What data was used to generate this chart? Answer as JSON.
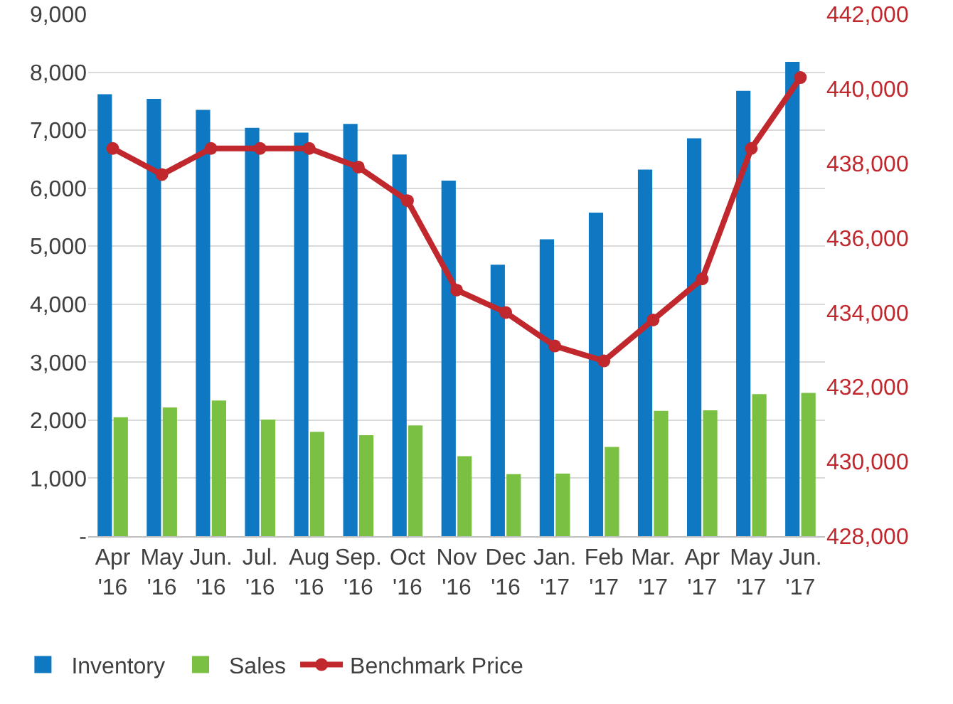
{
  "chart_data": {
    "type": "bar",
    "categories": [
      "Apr\n'16",
      "May\n'16",
      "Jun.\n'16",
      "Jul.\n'16",
      "Aug\n'16",
      "Sep.\n'16",
      "Oct\n'16",
      "Nov\n'16",
      "Dec\n'16",
      "Jan.\n'17",
      "Feb\n'17",
      "Mar.\n'17",
      "Apr\n'17",
      "May\n'17",
      "Jun.\n'17"
    ],
    "series": [
      {
        "name": "Inventory",
        "color": "#0f78c2",
        "values": [
          7620,
          7540,
          7350,
          7040,
          6960,
          7110,
          6580,
          6130,
          4680,
          5120,
          5580,
          6320,
          6860,
          7680,
          8180
        ]
      },
      {
        "name": "Sales",
        "color": "#7ac143",
        "values": [
          2050,
          2220,
          2340,
          2010,
          1800,
          1740,
          1910,
          1380,
          1070,
          1080,
          1540,
          2160,
          2170,
          2450,
          2470
        ]
      },
      {
        "name": "Benchmark Price",
        "type": "line",
        "axis": "y2",
        "color": "#c0282d",
        "marker": "circle",
        "values": [
          438400,
          437700,
          438400,
          438400,
          438400,
          437900,
          437000,
          434600,
          434000,
          433100,
          432700,
          433800,
          434900,
          438400,
          440300
        ]
      }
    ],
    "ylim": [
      0,
      9000
    ],
    "yticks": [
      {
        "value": 0,
        "label": "-"
      },
      {
        "value": 1000,
        "label": "1,000"
      },
      {
        "value": 2000,
        "label": "2,000"
      },
      {
        "value": 3000,
        "label": "3,000"
      },
      {
        "value": 4000,
        "label": "4,000"
      },
      {
        "value": 5000,
        "label": "5,000"
      },
      {
        "value": 6000,
        "label": "6,000"
      },
      {
        "value": 7000,
        "label": "7,000"
      },
      {
        "value": 8000,
        "label": "8,000"
      },
      {
        "value": 9000,
        "label": "9,000"
      }
    ],
    "y2lim": [
      428000,
      442000
    ],
    "y2ticks": [
      {
        "value": 428000,
        "label": "428,000"
      },
      {
        "value": 430000,
        "label": "430,000"
      },
      {
        "value": 432000,
        "label": "432,000"
      },
      {
        "value": 434000,
        "label": "434,000"
      },
      {
        "value": 436000,
        "label": "436,000"
      },
      {
        "value": 438000,
        "label": "438,000"
      },
      {
        "value": 440000,
        "label": "440,000"
      },
      {
        "value": 442000,
        "label": "442,000"
      }
    ],
    "grid": "y",
    "legend": "bottom left"
  }
}
